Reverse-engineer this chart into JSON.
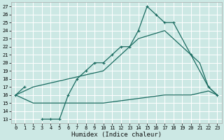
{
  "xlabel": "Humidex (Indice chaleur)",
  "bg_color": "#cce8e4",
  "grid_color": "#b8d8d4",
  "line_color": "#1a6b60",
  "xlim": [
    -0.5,
    23.5
  ],
  "ylim": [
    12.5,
    27.5
  ],
  "xticks": [
    0,
    1,
    2,
    3,
    4,
    5,
    6,
    7,
    8,
    9,
    10,
    11,
    12,
    13,
    14,
    15,
    16,
    17,
    18,
    19,
    20,
    21,
    22,
    23
  ],
  "yticks": [
    13,
    14,
    15,
    16,
    17,
    18,
    19,
    20,
    21,
    22,
    23,
    24,
    25,
    26,
    27
  ],
  "line1_segments": [
    {
      "x": [
        0,
        1
      ],
      "y": [
        16,
        17
      ]
    },
    {
      "x": [
        3,
        4,
        5,
        6,
        7,
        8,
        9,
        10,
        11,
        12,
        13,
        14,
        15,
        16,
        17,
        18,
        20,
        22,
        23
      ],
      "y": [
        13,
        13,
        13,
        16,
        18,
        19,
        20,
        20,
        21,
        22,
        22,
        24,
        27,
        26,
        25,
        25,
        21,
        17,
        16
      ]
    }
  ],
  "line1_markers_x": [
    0,
    1,
    3,
    4,
    5,
    6,
    7,
    8,
    9,
    10,
    11,
    12,
    13,
    14,
    15,
    16,
    17,
    18,
    20,
    22,
    23
  ],
  "line1_markers_y": [
    16,
    17,
    13,
    13,
    13,
    16,
    18,
    19,
    20,
    20,
    21,
    22,
    22,
    24,
    27,
    26,
    25,
    25,
    21,
    17,
    16
  ],
  "line2_x": [
    0,
    2,
    10,
    14,
    17,
    20,
    21,
    22,
    23
  ],
  "line2_y": [
    16,
    17,
    19,
    23,
    24,
    21,
    20,
    17,
    16
  ],
  "line3_x": [
    0,
    2,
    10,
    17,
    20,
    22,
    23
  ],
  "line3_y": [
    16,
    15,
    15,
    16,
    16,
    16.5,
    16
  ]
}
